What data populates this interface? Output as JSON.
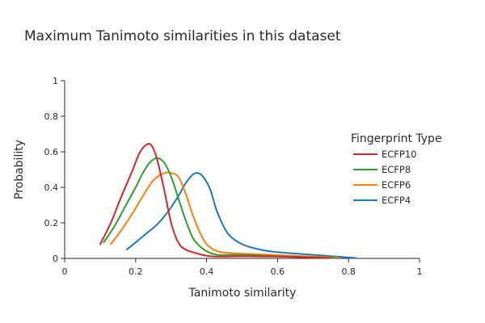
{
  "chart_data": {
    "type": "line",
    "title": "Maximum Tanimoto similarities in this dataset",
    "xlabel": "Tanimoto similarity",
    "ylabel": "Probability",
    "xlim": [
      0,
      1
    ],
    "ylim": [
      0,
      1
    ],
    "x_ticks": [
      0,
      0.2,
      0.4,
      0.6,
      0.8,
      1
    ],
    "x_tick_labels": [
      "0",
      "0.2",
      "0.4",
      "0.6",
      "0.8",
      "1"
    ],
    "y_ticks": [
      0,
      0.2,
      0.4,
      0.6,
      0.8,
      1
    ],
    "y_tick_labels": [
      "0",
      "0.2",
      "0.4",
      "0.6",
      "0.8",
      "1"
    ],
    "grid": false,
    "legend": {
      "title": "Fingerprint Type",
      "placement": "right"
    },
    "series": [
      {
        "name": "ECFP10",
        "color": "#d62728",
        "x": [
          0.1,
          0.13,
          0.16,
          0.19,
          0.21,
          0.23,
          0.245,
          0.26,
          0.28,
          0.3,
          0.32,
          0.34,
          0.37,
          0.4,
          0.44,
          0.5,
          0.6,
          0.7,
          0.75
        ],
        "y": [
          0.08,
          0.2,
          0.35,
          0.49,
          0.59,
          0.64,
          0.635,
          0.56,
          0.39,
          0.2,
          0.09,
          0.05,
          0.03,
          0.015,
          0.01,
          0.012,
          0.01,
          0.005,
          0.003
        ]
      },
      {
        "name": "ECFP8",
        "color": "#2ca02c",
        "x": [
          0.11,
          0.14,
          0.17,
          0.2,
          0.22,
          0.24,
          0.26,
          0.28,
          0.3,
          0.32,
          0.34,
          0.36,
          0.38,
          0.4,
          0.43,
          0.47,
          0.52,
          0.6,
          0.7,
          0.76
        ],
        "y": [
          0.09,
          0.18,
          0.29,
          0.4,
          0.48,
          0.54,
          0.565,
          0.54,
          0.46,
          0.34,
          0.22,
          0.12,
          0.07,
          0.04,
          0.02,
          0.02,
          0.018,
          0.012,
          0.006,
          0.003
        ]
      },
      {
        "name": "ECFP6",
        "color": "#ff7f0e",
        "x": [
          0.13,
          0.16,
          0.19,
          0.22,
          0.25,
          0.28,
          0.3,
          0.32,
          0.34,
          0.36,
          0.38,
          0.4,
          0.43,
          0.47,
          0.52,
          0.6,
          0.7,
          0.77
        ],
        "y": [
          0.08,
          0.16,
          0.25,
          0.35,
          0.44,
          0.48,
          0.48,
          0.46,
          0.37,
          0.25,
          0.15,
          0.08,
          0.04,
          0.03,
          0.025,
          0.018,
          0.01,
          0.005
        ]
      },
      {
        "name": "ECFP4",
        "color": "#1f77b4",
        "x": [
          0.175,
          0.2,
          0.23,
          0.26,
          0.29,
          0.32,
          0.34,
          0.36,
          0.375,
          0.39,
          0.41,
          0.43,
          0.46,
          0.5,
          0.55,
          0.6,
          0.7,
          0.8,
          0.82
        ],
        "y": [
          0.05,
          0.09,
          0.14,
          0.19,
          0.26,
          0.35,
          0.42,
          0.47,
          0.48,
          0.46,
          0.39,
          0.26,
          0.14,
          0.08,
          0.05,
          0.035,
          0.02,
          0.005,
          0.003
        ]
      }
    ]
  }
}
